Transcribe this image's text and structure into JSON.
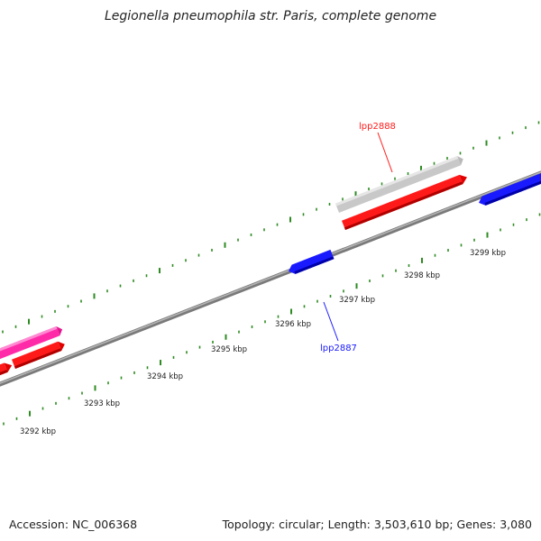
{
  "title": "Legionella pneumophila str. Paris, complete genome",
  "footer": {
    "accession": "Accession: NC_006368",
    "stats": "Topology: circular; Length: 3,503,610 bp; Genes: 3,080"
  },
  "scale_labels": [
    "3292 kbp",
    "3293 kbp",
    "3294 kbp",
    "3295 kbp",
    "3296 kbp",
    "3297 kbp",
    "3298 kbp",
    "3299 kbp"
  ],
  "gene_labels": {
    "top": "lpp2888",
    "bottom": "lpp2887"
  },
  "colors": {
    "backbone": "#8a8a8a",
    "tick": "#2e8b22",
    "red": "#ff1a1a",
    "blue": "#1a1aff",
    "gray": "#c8c8c8",
    "pink": "#ff2aa8"
  }
}
